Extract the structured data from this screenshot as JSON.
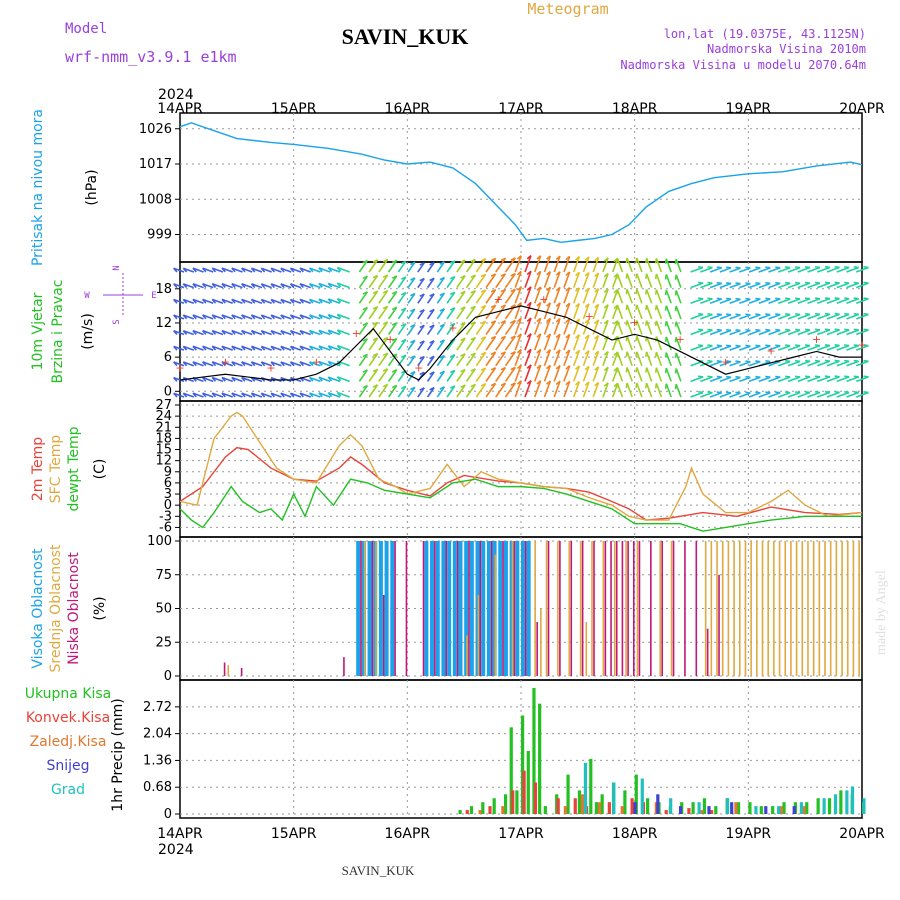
{
  "header": {
    "model_label": "Model",
    "model_name": "wrf-nmm_v3.9.1 e1km",
    "station": "SAVIN_KUK",
    "product": "Meteogram",
    "coords": "lon,lat (19.0375E, 43.1125N)",
    "elevation": "Nadmorska Visina 2010m",
    "model_elevation": "Nadmorska Visina u modelu 2070.64m",
    "footer_station": "SAVIN_KUK",
    "credit": "made by Angel"
  },
  "colors": {
    "pressure": "#1aa3e8",
    "temp2m": "#e8433a",
    "sfc_temp": "#e0a840",
    "dewpt": "#22c022",
    "high_cloud": "#1aa3e8",
    "mid_cloud": "#e0a840",
    "low_cloud": "#c0187a",
    "total_precip": "#22c022",
    "conv_precip": "#e8433a",
    "frozen_precip": "#e07830",
    "snow": "#4040d0",
    "hail": "#20c0c0",
    "purple_text": "#9a40d8",
    "gust_marker": "#f03c2c"
  },
  "axes": {
    "year": "2024",
    "x_ticks": [
      "14APR",
      "15APR",
      "16APR",
      "17APR",
      "18APR",
      "19APR",
      "20APR"
    ],
    "compass": {
      "n": "N",
      "s": "S",
      "w": "W",
      "e": "E"
    }
  },
  "chart_data": [
    {
      "type": "line",
      "panel": "pressure",
      "ylabel_main": "Pritisak na nivou mora",
      "ylabel_unit": "(hPa)",
      "yticks": [
        999,
        1008,
        1017,
        1026
      ],
      "ylim": [
        993,
        1029
      ],
      "xlim": [
        0,
        6
      ],
      "series": [
        {
          "name": "",
          "x": [
            0,
            0.1,
            0.3,
            0.5,
            0.8,
            1.0,
            1.3,
            1.6,
            1.8,
            2.0,
            2.2,
            2.4,
            2.6,
            2.8,
            2.95,
            3.05,
            3.2,
            3.35,
            3.5,
            3.65,
            3.8,
            3.95,
            4.1,
            4.3,
            4.5,
            4.7,
            5.0,
            5.3,
            5.6,
            5.9,
            6.0
          ],
          "values": [
            1026.5,
            1027.5,
            1025.5,
            1023.5,
            1022.5,
            1022.0,
            1021.0,
            1019.5,
            1018.0,
            1017.0,
            1017.5,
            1016.0,
            1012.0,
            1006.0,
            1001.5,
            997.5,
            998.0,
            997.0,
            997.5,
            998.0,
            999.0,
            1001.5,
            1006.0,
            1010.0,
            1012.0,
            1013.5,
            1014.5,
            1015.0,
            1016.5,
            1017.5,
            1016.8
          ]
        }
      ]
    },
    {
      "type": "line",
      "panel": "wind",
      "ylabel_main": "10m Vjetar",
      "ylabel_sub": "Brzina i Pravac",
      "ylabel_unit": "(m/s)",
      "yticks": [
        0,
        6,
        12,
        18
      ],
      "ylim": [
        -1,
        22
      ],
      "xlim": [
        0,
        6
      ],
      "series": [
        {
          "name": "",
          "x": [
            0,
            0.2,
            0.4,
            0.6,
            0.8,
            1.0,
            1.2,
            1.4,
            1.55,
            1.7,
            1.85,
            2.0,
            2.1,
            2.2,
            2.4,
            2.6,
            2.8,
            3.0,
            3.2,
            3.4,
            3.6,
            3.8,
            4.0,
            4.2,
            4.4,
            4.6,
            4.8,
            5.0,
            5.2,
            5.4,
            5.6,
            5.8,
            6.0
          ],
          "values": [
            2,
            2.5,
            3,
            2.5,
            2,
            2,
            3,
            5,
            8,
            11,
            7,
            3,
            2,
            4,
            9,
            13,
            14,
            15,
            14,
            13,
            11,
            9,
            10,
            9,
            7,
            5,
            3,
            4,
            5,
            6,
            7,
            6,
            6
          ]
        }
      ]
    },
    {
      "type": "line",
      "panel": "temperature",
      "ylabel_lines": [
        "2m Temp",
        "SFC Temp",
        "dewpt Temp"
      ],
      "ylabel_unit": "(C)",
      "yticks": [
        -6,
        -3,
        0,
        3,
        6,
        9,
        12,
        15,
        18,
        21,
        24,
        27
      ],
      "ylim": [
        -7.5,
        27
      ],
      "xlim": [
        0,
        6
      ],
      "series": [
        {
          "name": "2m Temp",
          "x": [
            0,
            0.2,
            0.4,
            0.5,
            0.6,
            0.8,
            1.0,
            1.2,
            1.4,
            1.5,
            1.6,
            1.8,
            2.0,
            2.2,
            2.35,
            2.5,
            2.8,
            3.0,
            3.2,
            3.4,
            3.6,
            3.8,
            3.95,
            4.1,
            4.3,
            4.6,
            4.9,
            5.2,
            5.5,
            5.8,
            6.0
          ],
          "values": [
            1,
            5,
            13,
            15.5,
            15,
            10,
            7,
            6.5,
            10,
            13,
            11,
            6,
            4,
            2.5,
            6,
            8,
            6.5,
            6,
            5,
            4.5,
            3.5,
            1,
            -1,
            -4,
            -3.5,
            -2,
            -3,
            -0.5,
            -2,
            -2.5,
            -2
          ]
        },
        {
          "name": "SFC Temp",
          "x": [
            0,
            0.15,
            0.3,
            0.45,
            0.5,
            0.55,
            0.7,
            0.85,
            1.0,
            1.2,
            1.4,
            1.5,
            1.6,
            1.75,
            1.9,
            2.0,
            2.2,
            2.35,
            2.5,
            2.65,
            2.8,
            3.0,
            3.2,
            3.4,
            3.6,
            3.8,
            3.95,
            4.1,
            4.3,
            4.45,
            4.5,
            4.6,
            4.8,
            5.0,
            5.2,
            5.35,
            5.5,
            5.7,
            6.0
          ],
          "values": [
            1,
            0,
            18,
            24,
            25,
            24,
            17,
            10,
            7,
            6,
            16,
            19,
            16,
            7,
            5,
            3,
            4.5,
            11,
            5,
            9,
            7,
            6,
            5,
            4.5,
            2,
            0,
            -3,
            -4,
            -4,
            5,
            10,
            3,
            -2,
            -2,
            1,
            4,
            0,
            -3,
            -2
          ]
        },
        {
          "name": "dewpt Temp",
          "x": [
            0,
            0.1,
            0.2,
            0.3,
            0.45,
            0.55,
            0.7,
            0.8,
            0.9,
            1.0,
            1.1,
            1.2,
            1.35,
            1.5,
            1.65,
            1.8,
            2.0,
            2.2,
            2.4,
            2.6,
            2.8,
            3.0,
            3.2,
            3.4,
            3.6,
            3.8,
            4.0,
            4.2,
            4.4,
            4.6,
            4.8,
            5.0,
            5.2,
            5.5,
            5.8,
            6.0
          ],
          "values": [
            -1,
            -4,
            -6,
            -2,
            5,
            1,
            -2,
            -1,
            -4,
            3,
            -3,
            5,
            0,
            7,
            6,
            4,
            3,
            2,
            6,
            7,
            5,
            5,
            4.5,
            3,
            1,
            -1,
            -5,
            -5,
            -5,
            -7,
            -6,
            -5,
            -4,
            -3,
            -3,
            -3
          ]
        }
      ]
    },
    {
      "type": "bar",
      "panel": "clouds",
      "ylabel_lines": [
        "Visoka Oblacnost",
        "Srednja Oblacnost",
        "Niska Oblacnost"
      ],
      "ylabel_unit": "(%)",
      "yticks": [
        0,
        25,
        50,
        75,
        100
      ],
      "ylim": [
        0,
        100
      ],
      "xlim": [
        0,
        6
      ],
      "series": [
        {
          "name": "Visoka Oblacnost",
          "x": [
            1.55,
            1.6,
            1.65,
            1.7,
            1.75,
            1.8,
            1.85,
            2.15,
            2.2,
            2.25,
            2.3,
            2.35,
            2.4,
            2.45,
            2.5,
            2.55,
            2.6,
            2.65,
            2.7,
            2.75,
            2.8,
            2.85,
            2.9,
            2.95,
            3.0,
            3.05
          ],
          "values": [
            100,
            100,
            100,
            100,
            100,
            100,
            100,
            100,
            100,
            100,
            100,
            100,
            100,
            100,
            100,
            100,
            100,
            100,
            100,
            100,
            100,
            100,
            100,
            100,
            100,
            100
          ]
        },
        {
          "name": "Srednja Oblacnost",
          "x": [
            0.4,
            1.6,
            1.7,
            2.5,
            2.6,
            2.75,
            2.9,
            3.1,
            3.15,
            3.2,
            3.3,
            3.4,
            3.5,
            3.55,
            3.6,
            3.7,
            3.8,
            3.9,
            4.0,
            4.2,
            4.3,
            4.6,
            4.65,
            4.7,
            4.75,
            4.8,
            4.85,
            4.9,
            4.95,
            5.0,
            5.05,
            5.1,
            5.15,
            5.2,
            5.25,
            5.3,
            5.35,
            5.4,
            5.45,
            5.5,
            5.55,
            5.6,
            5.65,
            5.7,
            5.75,
            5.8,
            5.85,
            5.9,
            5.95
          ],
          "values": [
            8,
            100,
            100,
            30,
            60,
            90,
            100,
            100,
            50,
            100,
            100,
            100,
            100,
            40,
            100,
            100,
            100,
            100,
            100,
            100,
            100,
            100,
            100,
            100,
            100,
            100,
            100,
            100,
            100,
            100,
            100,
            100,
            100,
            100,
            100,
            100,
            100,
            100,
            100,
            100,
            100,
            100,
            100,
            100,
            100,
            100,
            100,
            100,
            100
          ]
        },
        {
          "name": "Niska Oblacnost",
          "x": [
            0.35,
            0.5,
            1.4,
            1.55,
            1.65,
            1.75,
            1.85,
            1.95,
            2.1,
            2.2,
            2.3,
            2.4,
            2.5,
            2.6,
            2.7,
            2.8,
            2.9,
            3.0,
            3.1,
            3.2,
            3.3,
            3.4,
            3.5,
            3.6,
            3.7,
            3.75,
            3.8,
            3.85,
            3.9,
            3.95,
            4.0,
            4.1,
            4.2,
            4.3,
            4.4,
            4.5,
            4.6,
            4.7
          ],
          "values": [
            10,
            6,
            14,
            100,
            100,
            60,
            100,
            100,
            100,
            100,
            100,
            100,
            100,
            100,
            100,
            100,
            100,
            100,
            40,
            100,
            100,
            100,
            100,
            100,
            100,
            100,
            100,
            100,
            100,
            100,
            100,
            100,
            100,
            100,
            100,
            100,
            35,
            75
          ]
        }
      ]
    },
    {
      "type": "bar",
      "panel": "precipitation",
      "ylabel_lines": [
        "Ukupna Kisa",
        "Konvek.Kisa",
        "Zaledj.Kisa",
        "Snijeg",
        "Grad"
      ],
      "ylabel_unit": "1hr Precip (mm)",
      "yticks": [
        0,
        0.68,
        1.36,
        2.04,
        2.72
      ],
      "ylim": [
        0,
        3.3
      ],
      "xlim": [
        0,
        6
      ],
      "series": [
        {
          "name": "Ukupna Kisa",
          "x": [
            2.45,
            2.55,
            2.65,
            2.75,
            2.85,
            2.9,
            2.95,
            3.0,
            3.05,
            3.1,
            3.15,
            3.2,
            3.3,
            3.4,
            3.5,
            3.6,
            3.65,
            3.7,
            3.8,
            3.9,
            4.0,
            4.1,
            4.2,
            4.3,
            4.4,
            4.5,
            4.6,
            4.7,
            4.8,
            4.9,
            5.0,
            5.1,
            5.2,
            5.3,
            5.4,
            5.5,
            5.6,
            5.7,
            5.8,
            5.9,
            6.0
          ],
          "values": [
            0.1,
            0.2,
            0.3,
            0.4,
            0.5,
            2.2,
            0.6,
            2.5,
            1.6,
            3.2,
            2.8,
            0.2,
            0.5,
            1.0,
            0.6,
            1.4,
            0.3,
            0.5,
            0.8,
            0.6,
            1.0,
            0.4,
            0.3,
            0.2,
            0.3,
            0.3,
            0.4,
            0.2,
            0.4,
            0.3,
            0.3,
            0.2,
            0.2,
            0.3,
            0.3,
            0.3,
            0.4,
            0.4,
            0.6,
            0.5,
            0.3
          ]
        },
        {
          "name": "Konvek.Kisa",
          "x": [
            2.5,
            2.7,
            2.9,
            3.0,
            3.1,
            3.3,
            3.45,
            3.55,
            3.75,
            3.95,
            4.05,
            4.25,
            4.45,
            4.65
          ],
          "values": [
            0.1,
            0.2,
            0.6,
            1.1,
            0.8,
            0.4,
            0.4,
            0.2,
            0.3,
            0.4,
            0.3,
            0.1,
            0.15,
            0.1
          ]
        },
        {
          "name": "Zaledj.Kisa",
          "x": [
            2.6,
            2.8,
            3.35,
            3.5,
            3.65,
            3.85,
            4.15,
            4.55,
            4.85,
            5.25,
            5.45
          ],
          "values": [
            0.1,
            0.2,
            0.2,
            0.5,
            0.3,
            0.2,
            0.3,
            0.1,
            0.3,
            0.2,
            0.2
          ]
        },
        {
          "name": "Snijeg",
          "x": [
            3.95,
            4.15,
            4.35,
            4.6,
            4.8,
            5.1,
            5.35
          ],
          "values": [
            0.3,
            0.5,
            0.2,
            0.2,
            0.3,
            0.2,
            0.2
          ]
        },
        {
          "name": "Grad",
          "x": [
            3.5,
            3.75,
            4.0,
            4.25,
            4.5,
            4.75,
            5.0,
            5.2,
            5.4,
            5.6,
            5.7,
            5.8,
            5.85,
            5.95
          ],
          "values": [
            1.3,
            0.8,
            0.9,
            0.4,
            0.3,
            0.4,
            0.2,
            0.2,
            0.3,
            0.4,
            0.5,
            0.6,
            0.7,
            0.4
          ]
        }
      ]
    }
  ]
}
